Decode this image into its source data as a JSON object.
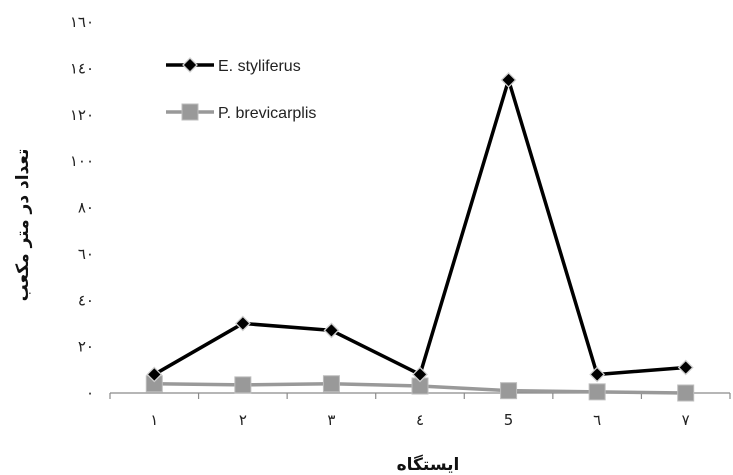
{
  "chart_data": {
    "type": "line",
    "title": "",
    "xlabel": "ایستگاه",
    "ylabel": "تعداد در متر مکعب",
    "categories": [
      "۱",
      "۲",
      "۳",
      "٤",
      "5",
      "٦",
      "۷"
    ],
    "yticks": [
      "٠",
      "٢٠",
      "٤٠",
      "٦٠",
      "٨٠",
      "١٠٠",
      "١٢٠",
      "١٤٠",
      "١٦٠"
    ],
    "ylim": [
      0,
      160
    ],
    "grid": false,
    "legend_position": "top-left",
    "series": [
      {
        "name": "E. styliferus",
        "values": [
          8,
          30,
          27,
          8,
          135,
          8,
          11
        ],
        "color": "#000000",
        "marker": "diamond"
      },
      {
        "name": "P. brevicarplis",
        "values": [
          4,
          3.5,
          4,
          3,
          1,
          0.5,
          0
        ],
        "color": "#999999",
        "marker": "square"
      }
    ]
  }
}
